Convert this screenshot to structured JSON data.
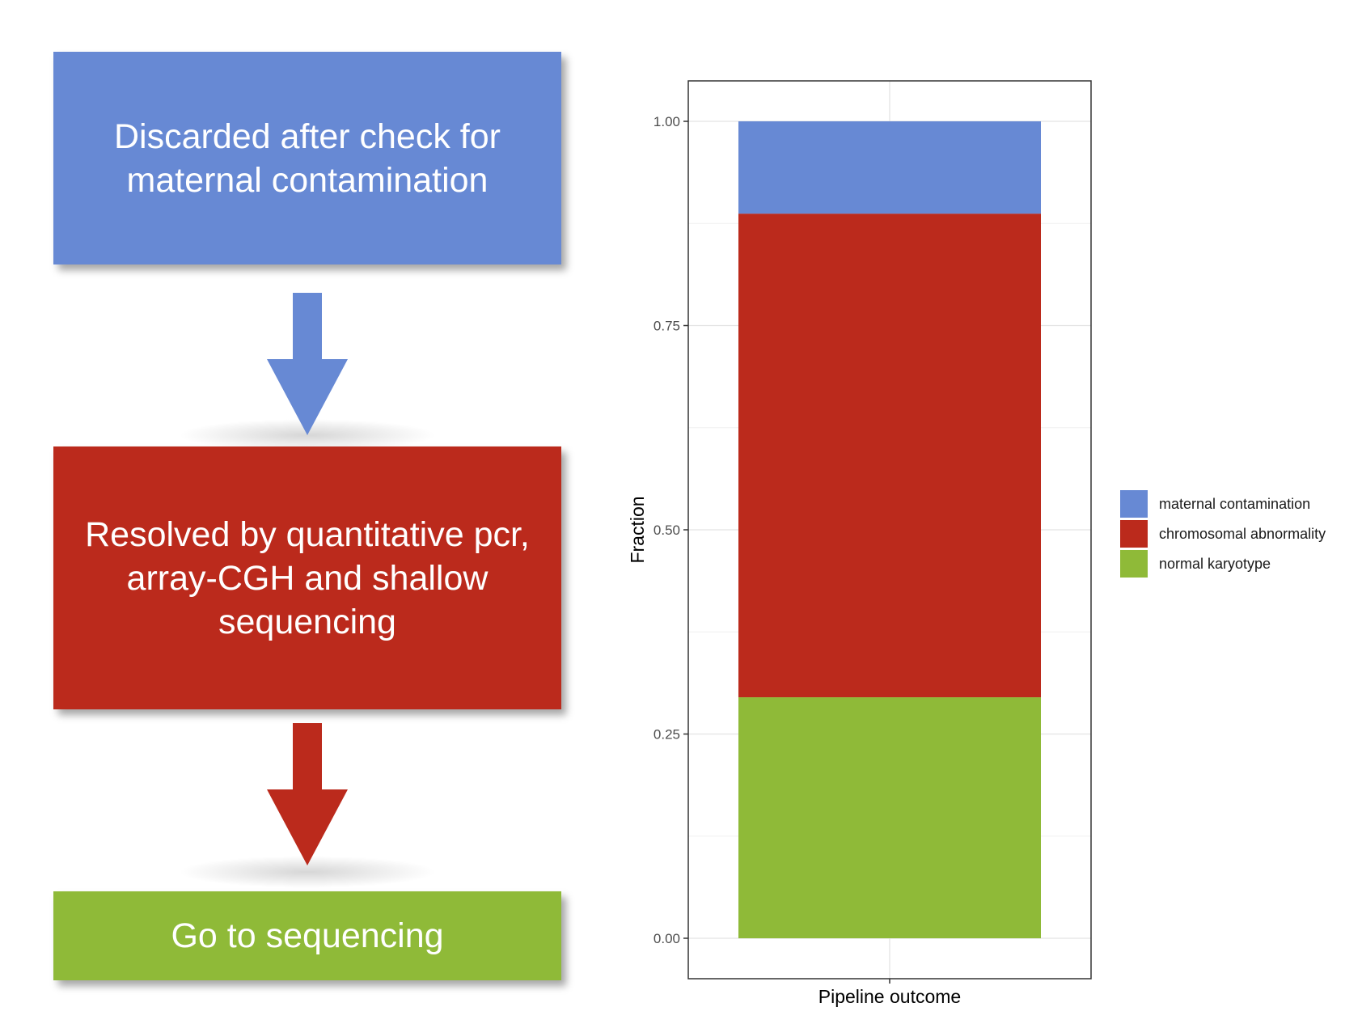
{
  "flow": {
    "box1": {
      "line1": "Discarded after check for",
      "line2": "maternal contamination",
      "color": "#6789d4"
    },
    "box2": {
      "line1": "Resolved by quantitative pcr,",
      "line2": "array-CGH and shallow",
      "line3": "sequencing",
      "color": "#bb2a1c"
    },
    "box3": {
      "line1": "Go to sequencing",
      "color": "#8fba38"
    }
  },
  "chart_data": {
    "type": "bar",
    "stacked": true,
    "categories": [
      "Pipeline outcome"
    ],
    "series": [
      {
        "name": "normal karyotype",
        "values": [
          0.295
        ],
        "color": "#8fba38"
      },
      {
        "name": "chromosomal abnormality",
        "values": [
          0.592
        ],
        "color": "#bb2a1c"
      },
      {
        "name": "maternal contamination",
        "values": [
          0.113
        ],
        "color": "#6789d4"
      }
    ],
    "xlabel": "Pipeline outcome",
    "ylabel": "Fraction",
    "ylim": [
      0,
      1
    ],
    "yticks": [
      "0.00",
      "0.25",
      "0.50",
      "0.75",
      "1.00"
    ],
    "grid": true,
    "legend_position": "right"
  }
}
